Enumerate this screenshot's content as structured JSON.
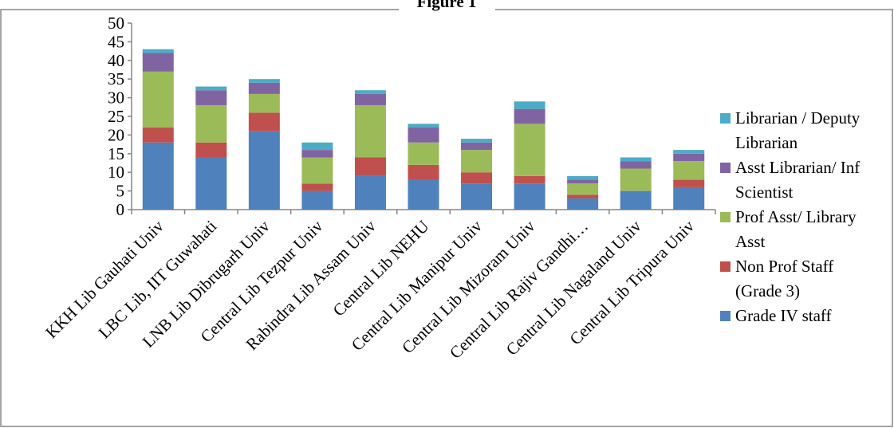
{
  "chart_data": {
    "type": "bar",
    "stacked": true,
    "title": "Figure 1",
    "xlabel": "",
    "ylabel": "",
    "ylim": [
      0,
      50
    ],
    "yticks": [
      0,
      5,
      10,
      15,
      20,
      25,
      30,
      35,
      40,
      45,
      50
    ],
    "grid": false,
    "legend_position": "right",
    "categories": [
      "KKH Lib Gauhati Univ",
      "LBC Lib, IIT Guwahati",
      "LNB Lib Dibrugarh Univ",
      "Central Lib Tezpur Univ",
      "Rabindra Lib Assam Univ",
      "Central Lib NEHU",
      "Central Lib Manipur Univ",
      "Central Lib Mizoram Univ",
      "Central Lib Rajiv Gandhi…",
      "Central Lib Nagaland Univ",
      "Central Lib Tripura Univ"
    ],
    "series": [
      {
        "name": "Grade IV staff",
        "color": "#4F81BD",
        "values": [
          18,
          14,
          21,
          5,
          9,
          8,
          7,
          7,
          3,
          5,
          6
        ]
      },
      {
        "name": "Non Prof Staff (Grade 3)",
        "color": "#C0504D",
        "values": [
          4,
          4,
          5,
          2,
          5,
          4,
          3,
          2,
          1,
          0,
          2
        ]
      },
      {
        "name": "Prof Asst/ Library Asst",
        "color": "#9BBB59",
        "values": [
          15,
          10,
          5,
          7,
          14,
          6,
          6,
          14,
          3,
          6,
          5
        ]
      },
      {
        "name": "Asst Librarian/ Inf Scientist",
        "color": "#8064A2",
        "values": [
          5,
          4,
          3,
          2,
          3,
          4,
          2,
          4,
          1,
          2,
          2
        ]
      },
      {
        "name": "Librarian / Deputy Librarian",
        "color": "#4BACC6",
        "values": [
          1,
          1,
          1,
          2,
          1,
          1,
          1,
          2,
          1,
          1,
          1
        ]
      }
    ],
    "legend": [
      {
        "lines": [
          "Librarian / Deputy",
          "Librarian"
        ],
        "series_index": 4
      },
      {
        "lines": [
          "Asst Librarian/ Inf",
          "Scientist"
        ],
        "series_index": 3
      },
      {
        "lines": [
          "Prof Asst/ Library",
          "Asst"
        ],
        "series_index": 2
      },
      {
        "lines": [
          "Non Prof Staff",
          "(Grade 3)"
        ],
        "series_index": 1
      },
      {
        "lines": [
          "Grade IV staff"
        ],
        "series_index": 0
      }
    ]
  }
}
